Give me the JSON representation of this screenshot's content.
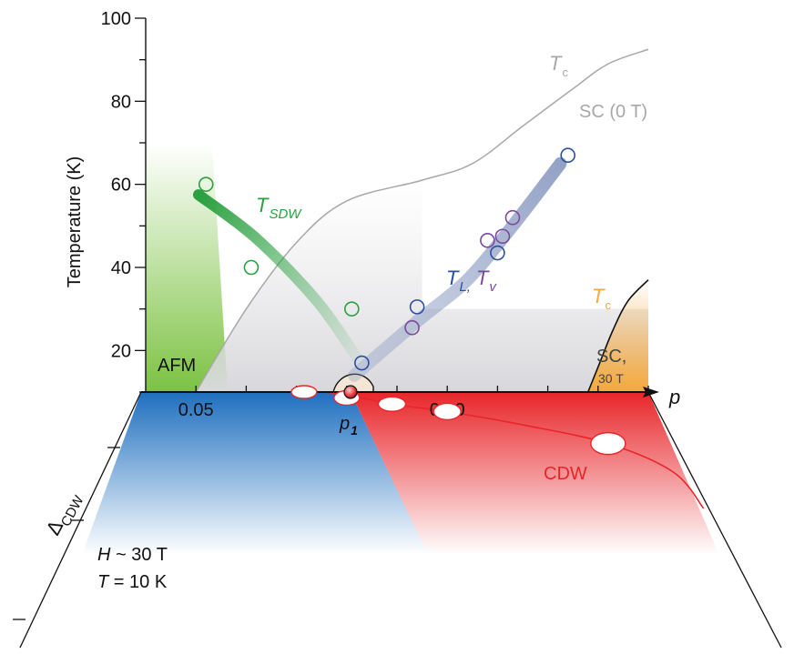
{
  "chart_data": {
    "type": "scatter",
    "title": "",
    "xlabel": "p",
    "ylabel": "Temperature (K)",
    "xlim": [
      0.04,
      0.14
    ],
    "ylim": [
      10,
      100
    ],
    "x_ticks": [
      0.05,
      0.1
    ],
    "x_tick_labels": [
      "0.05",
      "0.10"
    ],
    "y_ticks": [
      20,
      40,
      60,
      80,
      100
    ],
    "y_tick_labels": [
      "20",
      "40",
      "60",
      "80",
      "100"
    ],
    "grid": false,
    "colors": {
      "tsdw": "#2aa040",
      "tl": "#2b4fa0",
      "tv": "#7b4a9e",
      "tc_zero_field": "#a8a8a8",
      "tc_30t": "#111111",
      "cdw": "#e8262a",
      "afm": "#7cc242",
      "sc_30t": "#f5a93c",
      "axis": "#111111"
    },
    "labels": {
      "afm": "AFM",
      "tc_zero_field": "T",
      "tc_zero_field_sub": "c",
      "sc_zero_field": "SC (0 T)",
      "tsdw": "T",
      "tsdw_sub": "SDW",
      "tl": "T",
      "tl_sub": "L,",
      "tv": "T",
      "tv_sub": "v",
      "tc_30t": "T",
      "tc_30t_sub": "c",
      "sc_30t_line1": "SC,",
      "sc_30t_line2": "30 T",
      "p1": "p",
      "p1_sub": "1",
      "cdw": "CDW",
      "cdw_axis": "Δ",
      "cdw_axis_sub": "CDW",
      "condition_field_var": "H",
      "condition_field_rest": " ~ 30 T",
      "condition_temp_var": "T",
      "condition_temp_rest": " = 10 K"
    },
    "series": [
      {
        "name": "T_SDW",
        "points": [
          {
            "x": 0.052,
            "y": 60
          },
          {
            "x": 0.061,
            "y": 40
          },
          {
            "x": 0.081,
            "y": 30
          }
        ]
      },
      {
        "name": "T_L",
        "points": [
          {
            "x": 0.083,
            "y": 17
          },
          {
            "x": 0.094,
            "y": 30.5
          },
          {
            "x": 0.11,
            "y": 43.5
          },
          {
            "x": 0.124,
            "y": 67
          }
        ]
      },
      {
        "name": "T_v",
        "points": [
          {
            "x": 0.093,
            "y": 25.5
          },
          {
            "x": 0.108,
            "y": 46.5
          },
          {
            "x": 0.111,
            "y": 47.5
          },
          {
            "x": 0.113,
            "y": 52
          }
        ]
      },
      {
        "name": "T_c (0 T)",
        "curve": [
          {
            "x": 0.05,
            "y": 10
          },
          {
            "x": 0.06,
            "y": 30
          },
          {
            "x": 0.07,
            "y": 46
          },
          {
            "x": 0.08,
            "y": 56
          },
          {
            "x": 0.095,
            "y": 61
          },
          {
            "x": 0.105,
            "y": 65
          },
          {
            "x": 0.115,
            "y": 74
          },
          {
            "x": 0.125,
            "y": 83
          },
          {
            "x": 0.132,
            "y": 89
          },
          {
            "x": 0.14,
            "y": 92.5
          }
        ]
      },
      {
        "name": "T_c (30 T)",
        "curve": [
          {
            "x": 0.128,
            "y": 10
          },
          {
            "x": 0.13,
            "y": 16
          },
          {
            "x": 0.133,
            "y": 25
          },
          {
            "x": 0.136,
            "y": 32
          },
          {
            "x": 0.14,
            "y": 37
          }
        ]
      }
    ],
    "cdw_points": [
      {
        "x": 0.08,
        "depth": 1.4
      },
      {
        "x": 0.089,
        "depth": 2.9
      },
      {
        "x": 0.1,
        "depth": 4.7
      },
      {
        "x": 0.132,
        "depth": 12.4
      }
    ]
  }
}
